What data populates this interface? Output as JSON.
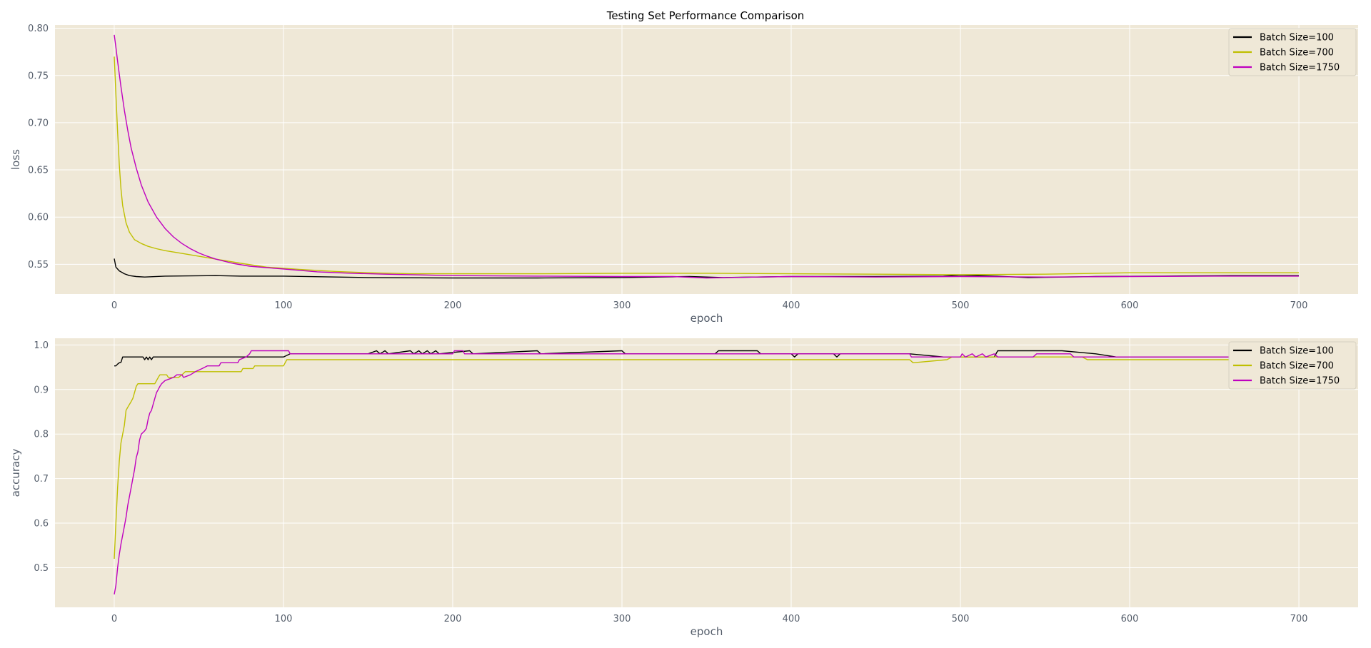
{
  "figure": {
    "title": "Testing Set Performance Comparison",
    "background": "#ffffff",
    "axes_facecolor": "#efe8d7",
    "grid_color": "#ffffff",
    "tick_label_color": "#555e6b",
    "title_color": "#000000"
  },
  "chart_data": [
    {
      "type": "line",
      "xlabel": "epoch",
      "ylabel": "loss",
      "xlim": [
        -35,
        735
      ],
      "ylim": [
        0.5185,
        0.8035
      ],
      "xticks": [
        0,
        100,
        200,
        300,
        400,
        500,
        600,
        700
      ],
      "yticks": [
        0.55,
        0.6,
        0.65,
        0.7,
        0.75,
        0.8
      ],
      "ytick_labels": [
        "0.55",
        "0.60",
        "0.65",
        "0.70",
        "0.75",
        "0.80"
      ],
      "grid": true,
      "legend_position": "top-right",
      "series": [
        {
          "name": "Batch Size=100",
          "color": "#000000",
          "points": [
            [
              0,
              0.556
            ],
            [
              1,
              0.547
            ],
            [
              3,
              0.543
            ],
            [
              6,
              0.54
            ],
            [
              9,
              0.538
            ],
            [
              13,
              0.537
            ],
            [
              18,
              0.5365
            ],
            [
              30,
              0.5375
            ],
            [
              60,
              0.538
            ],
            [
              75,
              0.5375
            ],
            [
              100,
              0.5375
            ],
            [
              150,
              0.536
            ],
            [
              200,
              0.5355
            ],
            [
              250,
              0.5355
            ],
            [
              300,
              0.536
            ],
            [
              340,
              0.537
            ],
            [
              360,
              0.536
            ],
            [
              400,
              0.537
            ],
            [
              450,
              0.537
            ],
            [
              490,
              0.5375
            ],
            [
              500,
              0.5385
            ],
            [
              520,
              0.5375
            ],
            [
              540,
              0.536
            ],
            [
              580,
              0.537
            ],
            [
              620,
              0.5375
            ],
            [
              660,
              0.538
            ],
            [
              700,
              0.538
            ]
          ]
        },
        {
          "name": "Batch Size=700",
          "color": "#bfbf00",
          "points": [
            [
              0,
              0.77
            ],
            [
              1,
              0.73
            ],
            [
              2,
              0.69
            ],
            [
              3,
              0.655
            ],
            [
              4,
              0.63
            ],
            [
              5,
              0.612
            ],
            [
              7,
              0.594
            ],
            [
              9,
              0.584
            ],
            [
              12,
              0.576
            ],
            [
              16,
              0.572
            ],
            [
              20,
              0.569
            ],
            [
              25,
              0.5665
            ],
            [
              30,
              0.5645
            ],
            [
              40,
              0.5615
            ],
            [
              50,
              0.5585
            ],
            [
              60,
              0.5555
            ],
            [
              75,
              0.551
            ],
            [
              90,
              0.547
            ],
            [
              110,
              0.5445
            ],
            [
              130,
              0.5425
            ],
            [
              150,
              0.541
            ],
            [
              175,
              0.54
            ],
            [
              200,
              0.54
            ],
            [
              250,
              0.54
            ],
            [
              300,
              0.5405
            ],
            [
              350,
              0.5405
            ],
            [
              400,
              0.54
            ],
            [
              450,
              0.5395
            ],
            [
              500,
              0.539
            ],
            [
              550,
              0.5395
            ],
            [
              600,
              0.541
            ],
            [
              650,
              0.541
            ],
            [
              700,
              0.541
            ]
          ]
        },
        {
          "name": "Batch Size=1750",
          "color": "#bf00bf",
          "points": [
            [
              0,
              0.793
            ],
            [
              1,
              0.78
            ],
            [
              2,
              0.765
            ],
            [
              4,
              0.738
            ],
            [
              6,
              0.713
            ],
            [
              8,
              0.692
            ],
            [
              10,
              0.673
            ],
            [
              13,
              0.652
            ],
            [
              16,
              0.634
            ],
            [
              20,
              0.616
            ],
            [
              25,
              0.6
            ],
            [
              30,
              0.588
            ],
            [
              35,
              0.579
            ],
            [
              40,
              0.572
            ],
            [
              45,
              0.5665
            ],
            [
              50,
              0.562
            ],
            [
              55,
              0.5585
            ],
            [
              60,
              0.5555
            ],
            [
              70,
              0.551
            ],
            [
              80,
              0.548
            ],
            [
              90,
              0.5465
            ],
            [
              100,
              0.545
            ],
            [
              120,
              0.542
            ],
            [
              140,
              0.5405
            ],
            [
              160,
              0.5395
            ],
            [
              200,
              0.538
            ],
            [
              250,
              0.5375
            ],
            [
              300,
              0.537
            ],
            [
              330,
              0.537
            ],
            [
              350,
              0.5355
            ],
            [
              380,
              0.5365
            ],
            [
              400,
              0.537
            ],
            [
              450,
              0.5365
            ],
            [
              500,
              0.537
            ],
            [
              550,
              0.5365
            ],
            [
              600,
              0.537
            ],
            [
              650,
              0.5375
            ],
            [
              700,
              0.5375
            ]
          ]
        }
      ]
    },
    {
      "type": "line",
      "xlabel": "epoch",
      "ylabel": "accuracy",
      "xlim": [
        -35,
        735
      ],
      "ylim": [
        0.411,
        1.015
      ],
      "xticks": [
        0,
        100,
        200,
        300,
        400,
        500,
        600,
        700
      ],
      "yticks": [
        0.5,
        0.6,
        0.7,
        0.8,
        0.9,
        1.0
      ],
      "ytick_labels": [
        "0.5",
        "0.6",
        "0.7",
        "0.8",
        "0.9",
        "1.0"
      ],
      "grid": true,
      "legend_position": "top-right",
      "series": [
        {
          "name": "Batch Size=100",
          "color": "#000000",
          "points": [
            [
              0,
              0.953
            ],
            [
              1,
              0.953
            ],
            [
              2,
              0.957
            ],
            [
              3,
              0.96
            ],
            [
              4,
              0.961
            ],
            [
              5,
              0.973
            ],
            [
              10,
              0.973
            ],
            [
              17,
              0.973
            ],
            [
              18,
              0.967
            ],
            [
              19,
              0.973
            ],
            [
              20,
              0.967
            ],
            [
              21,
              0.973
            ],
            [
              22,
              0.967
            ],
            [
              23,
              0.973
            ],
            [
              100,
              0.973
            ],
            [
              104,
              0.98
            ],
            [
              150,
              0.98
            ],
            [
              155,
              0.987
            ],
            [
              157,
              0.98
            ],
            [
              160,
              0.987
            ],
            [
              162,
              0.98
            ],
            [
              175,
              0.987
            ],
            [
              177,
              0.98
            ],
            [
              180,
              0.987
            ],
            [
              182,
              0.98
            ],
            [
              185,
              0.987
            ],
            [
              187,
              0.98
            ],
            [
              190,
              0.987
            ],
            [
              192,
              0.98
            ],
            [
              210,
              0.987
            ],
            [
              212,
              0.98
            ],
            [
              250,
              0.987
            ],
            [
              252,
              0.98
            ],
            [
              300,
              0.987
            ],
            [
              302,
              0.98
            ],
            [
              355,
              0.98
            ],
            [
              357,
              0.987
            ],
            [
              380,
              0.987
            ],
            [
              382,
              0.98
            ],
            [
              400,
              0.98
            ],
            [
              402,
              0.973
            ],
            [
              404,
              0.98
            ],
            [
              425,
              0.98
            ],
            [
              427,
              0.973
            ],
            [
              429,
              0.98
            ],
            [
              450,
              0.98
            ],
            [
              470,
              0.98
            ],
            [
              490,
              0.973
            ],
            [
              495,
              0.973
            ],
            [
              500,
              0.973
            ],
            [
              520,
              0.973
            ],
            [
              522,
              0.987
            ],
            [
              560,
              0.987
            ],
            [
              580,
              0.98
            ],
            [
              592,
              0.973
            ],
            [
              700,
              0.973
            ]
          ]
        },
        {
          "name": "Batch Size=700",
          "color": "#bfbf00",
          "points": [
            [
              0,
              0.52
            ],
            [
              1,
              0.6
            ],
            [
              2,
              0.68
            ],
            [
              3,
              0.74
            ],
            [
              4,
              0.78
            ],
            [
              5,
              0.8
            ],
            [
              6,
              0.82
            ],
            [
              7,
              0.853
            ],
            [
              8,
              0.86
            ],
            [
              10,
              0.873
            ],
            [
              11,
              0.88
            ],
            [
              12,
              0.893
            ],
            [
              13,
              0.907
            ],
            [
              14,
              0.913
            ],
            [
              24,
              0.913
            ],
            [
              25,
              0.92
            ],
            [
              26,
              0.927
            ],
            [
              27,
              0.933
            ],
            [
              31,
              0.933
            ],
            [
              32,
              0.927
            ],
            [
              38,
              0.927
            ],
            [
              40,
              0.933
            ],
            [
              42,
              0.94
            ],
            [
              75,
              0.94
            ],
            [
              76,
              0.947
            ],
            [
              82,
              0.947
            ],
            [
              83,
              0.953
            ],
            [
              100,
              0.953
            ],
            [
              102,
              0.967
            ],
            [
              470,
              0.967
            ],
            [
              472,
              0.96
            ],
            [
              492,
              0.967
            ],
            [
              495,
              0.973
            ],
            [
              520,
              0.973
            ],
            [
              530,
              0.973
            ],
            [
              540,
              0.973
            ],
            [
              572,
              0.973
            ],
            [
              575,
              0.967
            ],
            [
              700,
              0.967
            ]
          ]
        },
        {
          "name": "Batch Size=1750",
          "color": "#bf00bf",
          "points": [
            [
              0,
              0.44
            ],
            [
              1,
              0.46
            ],
            [
              2,
              0.5
            ],
            [
              3,
              0.53
            ],
            [
              4,
              0.553
            ],
            [
              5,
              0.573
            ],
            [
              6,
              0.593
            ],
            [
              7,
              0.613
            ],
            [
              8,
              0.64
            ],
            [
              9,
              0.66
            ],
            [
              10,
              0.68
            ],
            [
              11,
              0.7
            ],
            [
              12,
              0.72
            ],
            [
              13,
              0.747
            ],
            [
              14,
              0.76
            ],
            [
              15,
              0.787
            ],
            [
              16,
              0.8
            ],
            [
              18,
              0.807
            ],
            [
              19,
              0.813
            ],
            [
              20,
              0.833
            ],
            [
              21,
              0.847
            ],
            [
              22,
              0.853
            ],
            [
              23,
              0.867
            ],
            [
              24,
              0.88
            ],
            [
              25,
              0.893
            ],
            [
              26,
              0.9
            ],
            [
              27,
              0.907
            ],
            [
              28,
              0.913
            ],
            [
              30,
              0.92
            ],
            [
              35,
              0.927
            ],
            [
              37,
              0.933
            ],
            [
              40,
              0.933
            ],
            [
              41,
              0.927
            ],
            [
              45,
              0.933
            ],
            [
              48,
              0.94
            ],
            [
              52,
              0.947
            ],
            [
              55,
              0.953
            ],
            [
              62,
              0.953
            ],
            [
              63,
              0.96
            ],
            [
              73,
              0.96
            ],
            [
              74,
              0.967
            ],
            [
              78,
              0.973
            ],
            [
              80,
              0.98
            ],
            [
              81,
              0.987
            ],
            [
              103,
              0.987
            ],
            [
              104,
              0.98
            ],
            [
              200,
              0.98
            ],
            [
              201,
              0.987
            ],
            [
              206,
              0.987
            ],
            [
              207,
              0.98
            ],
            [
              470,
              0.98
            ],
            [
              471,
              0.973
            ],
            [
              500,
              0.973
            ],
            [
              501,
              0.98
            ],
            [
              503,
              0.973
            ],
            [
              507,
              0.98
            ],
            [
              509,
              0.973
            ],
            [
              513,
              0.98
            ],
            [
              515,
              0.973
            ],
            [
              520,
              0.98
            ],
            [
              522,
              0.973
            ],
            [
              543,
              0.973
            ],
            [
              545,
              0.98
            ],
            [
              565,
              0.98
            ],
            [
              567,
              0.973
            ],
            [
              700,
              0.973
            ]
          ]
        }
      ]
    }
  ]
}
